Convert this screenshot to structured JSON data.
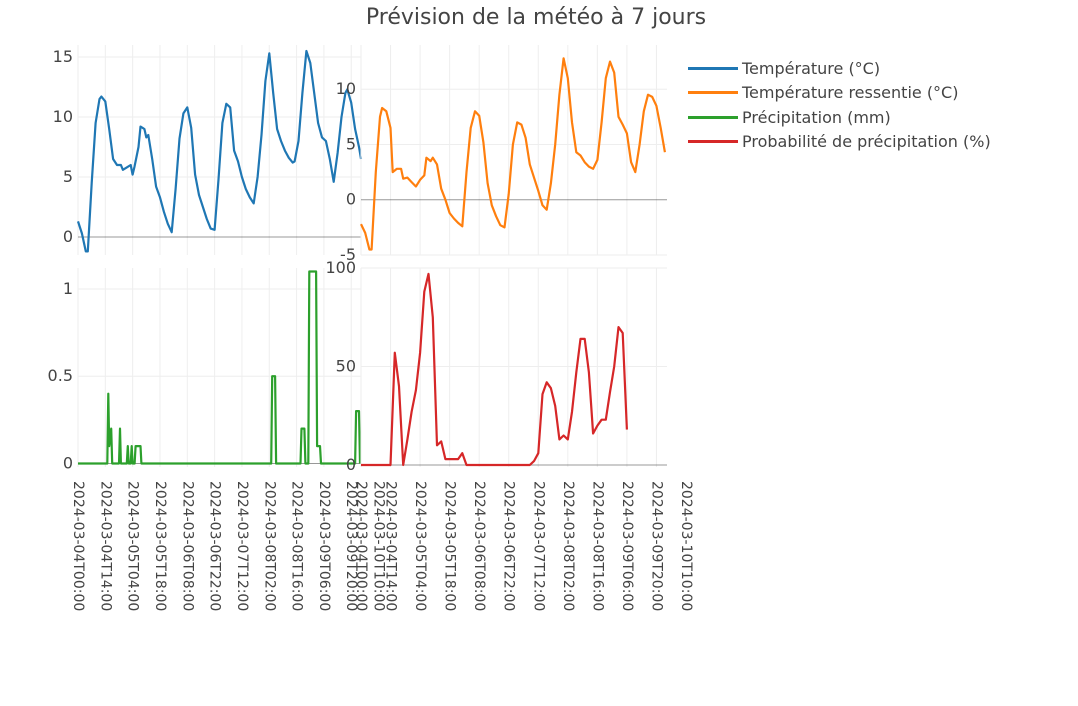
{
  "title": "Prévision de la météo à 7 jours",
  "colors": {
    "temperature": "#1f77b4",
    "feels_like": "#ff7f0e",
    "precipitation": "#2ca02c",
    "precip_prob": "#d62728"
  },
  "legend": [
    {
      "label": "Température (°C)",
      "color": "#1f77b4"
    },
    {
      "label": "Température ressentie (°C)",
      "color": "#ff7f0e"
    },
    {
      "label": "Précipitation (mm)",
      "color": "#2ca02c"
    },
    {
      "label": "Probabilité de précipitation (%)",
      "color": "#d62728"
    }
  ],
  "x_ticks": [
    "2024-03-04T00:00",
    "2024-03-04T14:00",
    "2024-03-05T04:00",
    "2024-03-05T18:00",
    "2024-03-06T08:00",
    "2024-03-06T22:00",
    "2024-03-07T12:00",
    "2024-03-08T02:00",
    "2024-03-08T16:00",
    "2024-03-09T06:00",
    "2024-03-09T20:00",
    "2024-03-10T10:00"
  ],
  "chart_data": [
    {
      "type": "line",
      "name": "Température (°C)",
      "color": "#1f77b4",
      "ylim": [
        -1.5,
        16
      ],
      "yticks": [
        0,
        5,
        10,
        15
      ],
      "points": [
        [
          0,
          1.3
        ],
        [
          2,
          0.3
        ],
        [
          4,
          -1.2
        ],
        [
          5,
          -1.2
        ],
        [
          7,
          4.5
        ],
        [
          9,
          9.5
        ],
        [
          11,
          11.5
        ],
        [
          12,
          11.7
        ],
        [
          14,
          11.3
        ],
        [
          16,
          9
        ],
        [
          18,
          6.5
        ],
        [
          20,
          6
        ],
        [
          22,
          6
        ],
        [
          23,
          5.6
        ],
        [
          25,
          5.8
        ],
        [
          27,
          6
        ],
        [
          28,
          5.2
        ],
        [
          29,
          5.9
        ],
        [
          31,
          7.5
        ],
        [
          32,
          9.2
        ],
        [
          34,
          9
        ],
        [
          35,
          8.3
        ],
        [
          36,
          8.5
        ],
        [
          38,
          6.5
        ],
        [
          40,
          4.2
        ],
        [
          42,
          3.3
        ],
        [
          44,
          2.1
        ],
        [
          46,
          1.1
        ],
        [
          48,
          0.4
        ],
        [
          50,
          4
        ],
        [
          52,
          8.2
        ],
        [
          54,
          10.3
        ],
        [
          56,
          10.8
        ],
        [
          58,
          9.1
        ],
        [
          60,
          5.2
        ],
        [
          62,
          3.5
        ],
        [
          64,
          2.5
        ],
        [
          66,
          1.5
        ],
        [
          68,
          0.7
        ],
        [
          70,
          0.6
        ],
        [
          72,
          4.8
        ],
        [
          74,
          9.5
        ],
        [
          76,
          11.1
        ],
        [
          78,
          10.8
        ],
        [
          80,
          7.2
        ],
        [
          82,
          6.3
        ],
        [
          84,
          5
        ],
        [
          86,
          4
        ],
        [
          88,
          3.3
        ],
        [
          90,
          2.8
        ],
        [
          92,
          5
        ],
        [
          94,
          8.5
        ],
        [
          96,
          13
        ],
        [
          98,
          15.3
        ],
        [
          100,
          12
        ],
        [
          102,
          9
        ],
        [
          104,
          8
        ],
        [
          106,
          7.2
        ],
        [
          108,
          6.6
        ],
        [
          110,
          6.2
        ],
        [
          111,
          6.3
        ],
        [
          113,
          8
        ],
        [
          115,
          12
        ],
        [
          117,
          15.5
        ],
        [
          119,
          14.5
        ],
        [
          121,
          12
        ],
        [
          123,
          9.5
        ],
        [
          125,
          8.3
        ],
        [
          127,
          8
        ],
        [
          129,
          6.5
        ],
        [
          131,
          4.6
        ],
        [
          133,
          7
        ],
        [
          135,
          10
        ],
        [
          137,
          12
        ],
        [
          138,
          12.3
        ],
        [
          140,
          11.2
        ],
        [
          142,
          9
        ],
        [
          144,
          7.5
        ],
        [
          145,
          6.5
        ]
      ]
    },
    {
      "type": "line",
      "name": "Température ressentie (°C)",
      "color": "#ff7f0e",
      "ylim": [
        -5,
        14
      ],
      "yticks": [
        -5,
        0,
        5,
        10
      ],
      "points": [
        [
          0,
          -2.2
        ],
        [
          2,
          -3
        ],
        [
          4,
          -4.5
        ],
        [
          5,
          -4.5
        ],
        [
          7,
          2.5
        ],
        [
          9,
          7.5
        ],
        [
          10,
          8.3
        ],
        [
          12,
          8
        ],
        [
          14,
          6.5
        ],
        [
          15,
          2.5
        ],
        [
          17,
          2.8
        ],
        [
          19,
          2.8
        ],
        [
          20,
          1.9
        ],
        [
          22,
          2
        ],
        [
          24,
          1.6
        ],
        [
          26,
          1.2
        ],
        [
          28,
          1.8
        ],
        [
          30,
          2.2
        ],
        [
          31,
          3.8
        ],
        [
          33,
          3.5
        ],
        [
          34,
          3.8
        ],
        [
          36,
          3.2
        ],
        [
          38,
          1
        ],
        [
          40,
          0
        ],
        [
          42,
          -1.2
        ],
        [
          44,
          -1.7
        ],
        [
          46,
          -2.1
        ],
        [
          48,
          -2.4
        ],
        [
          50,
          2.5
        ],
        [
          52,
          6.5
        ],
        [
          54,
          8
        ],
        [
          56,
          7.6
        ],
        [
          58,
          5.2
        ],
        [
          60,
          1.5
        ],
        [
          62,
          -0.5
        ],
        [
          64,
          -1.5
        ],
        [
          66,
          -2.3
        ],
        [
          68,
          -2.5
        ],
        [
          70,
          0.5
        ],
        [
          72,
          5
        ],
        [
          74,
          7
        ],
        [
          76,
          6.8
        ],
        [
          78,
          5.6
        ],
        [
          80,
          3.2
        ],
        [
          82,
          2
        ],
        [
          84,
          0.8
        ],
        [
          86,
          -0.5
        ],
        [
          88,
          -0.9
        ],
        [
          90,
          1.5
        ],
        [
          92,
          5
        ],
        [
          94,
          9.5
        ],
        [
          96,
          12.8
        ],
        [
          98,
          11
        ],
        [
          100,
          7
        ],
        [
          102,
          4.3
        ],
        [
          104,
          4
        ],
        [
          106,
          3.4
        ],
        [
          108,
          3
        ],
        [
          110,
          2.8
        ],
        [
          112,
          3.6
        ],
        [
          114,
          7
        ],
        [
          116,
          11
        ],
        [
          118,
          12.5
        ],
        [
          120,
          11.5
        ],
        [
          122,
          7.5
        ],
        [
          124,
          6.8
        ],
        [
          126,
          6
        ],
        [
          128,
          3.4
        ],
        [
          130,
          2.5
        ],
        [
          132,
          5
        ],
        [
          134,
          8
        ],
        [
          136,
          9.5
        ],
        [
          138,
          9.3
        ],
        [
          140,
          8.5
        ],
        [
          142,
          6.5
        ],
        [
          144,
          4.3
        ]
      ]
    },
    {
      "type": "line",
      "name": "Précipitation (mm)",
      "color": "#2ca02c",
      "ylim": [
        -0.02,
        1.12
      ],
      "yticks": [
        0,
        0.5,
        1
      ],
      "points": [
        [
          0,
          0
        ],
        [
          15,
          0
        ],
        [
          15.5,
          0.4
        ],
        [
          16,
          0.1
        ],
        [
          17,
          0.2
        ],
        [
          17.5,
          0
        ],
        [
          21,
          0
        ],
        [
          21.5,
          0.2
        ],
        [
          22,
          0
        ],
        [
          25,
          0
        ],
        [
          25.5,
          0.1
        ],
        [
          26,
          0
        ],
        [
          27,
          0
        ],
        [
          27.5,
          0.1
        ],
        [
          28,
          0
        ],
        [
          29,
          0
        ],
        [
          29.5,
          0.1
        ],
        [
          32,
          0.1
        ],
        [
          32.5,
          0
        ],
        [
          99,
          0
        ],
        [
          99.5,
          0.5
        ],
        [
          101,
          0.5
        ],
        [
          101.5,
          0
        ],
        [
          114,
          0
        ],
        [
          114.5,
          0.2
        ],
        [
          116,
          0.2
        ],
        [
          116.5,
          0
        ],
        [
          118,
          0
        ],
        [
          118.5,
          1.1
        ],
        [
          122,
          1.1
        ],
        [
          122.5,
          0.1
        ],
        [
          124,
          0.1
        ],
        [
          124.5,
          0
        ],
        [
          142,
          0
        ],
        [
          142.5,
          0.3
        ],
        [
          144,
          0.3
        ],
        [
          144.5,
          0
        ]
      ]
    },
    {
      "type": "line",
      "name": "Probabilité de précipitation (%)",
      "color": "#d62728",
      "ylim": [
        -1,
        100
      ],
      "yticks": [
        0,
        50,
        100
      ],
      "points": [
        [
          0,
          0
        ],
        [
          14,
          0
        ],
        [
          16,
          57
        ],
        [
          18,
          40
        ],
        [
          20,
          0
        ],
        [
          22,
          13
        ],
        [
          24,
          27
        ],
        [
          26,
          38
        ],
        [
          28,
          57
        ],
        [
          30,
          88
        ],
        [
          32,
          97
        ],
        [
          34,
          75
        ],
        [
          36,
          10
        ],
        [
          38,
          12
        ],
        [
          40,
          3
        ],
        [
          42,
          3
        ],
        [
          44,
          3
        ],
        [
          46,
          3
        ],
        [
          48,
          6
        ],
        [
          50,
          0
        ],
        [
          52,
          0
        ],
        [
          54,
          0
        ],
        [
          56,
          0
        ],
        [
          58,
          0
        ],
        [
          60,
          0
        ],
        [
          62,
          0
        ],
        [
          64,
          0
        ],
        [
          66,
          0
        ],
        [
          68,
          0
        ],
        [
          70,
          0
        ],
        [
          72,
          0
        ],
        [
          74,
          0
        ],
        [
          76,
          0
        ],
        [
          78,
          0
        ],
        [
          80,
          0
        ],
        [
          82,
          2
        ],
        [
          84,
          6
        ],
        [
          86,
          36
        ],
        [
          88,
          42
        ],
        [
          90,
          39
        ],
        [
          92,
          30
        ],
        [
          94,
          13
        ],
        [
          96,
          15
        ],
        [
          98,
          13
        ],
        [
          100,
          27
        ],
        [
          102,
          47
        ],
        [
          104,
          64
        ],
        [
          106,
          64
        ],
        [
          108,
          47
        ],
        [
          110,
          16
        ],
        [
          112,
          20
        ],
        [
          114,
          23
        ],
        [
          116,
          23
        ],
        [
          118,
          37
        ],
        [
          120,
          50
        ],
        [
          122,
          70
        ],
        [
          124,
          67
        ],
        [
          126,
          18
        ]
      ]
    }
  ]
}
